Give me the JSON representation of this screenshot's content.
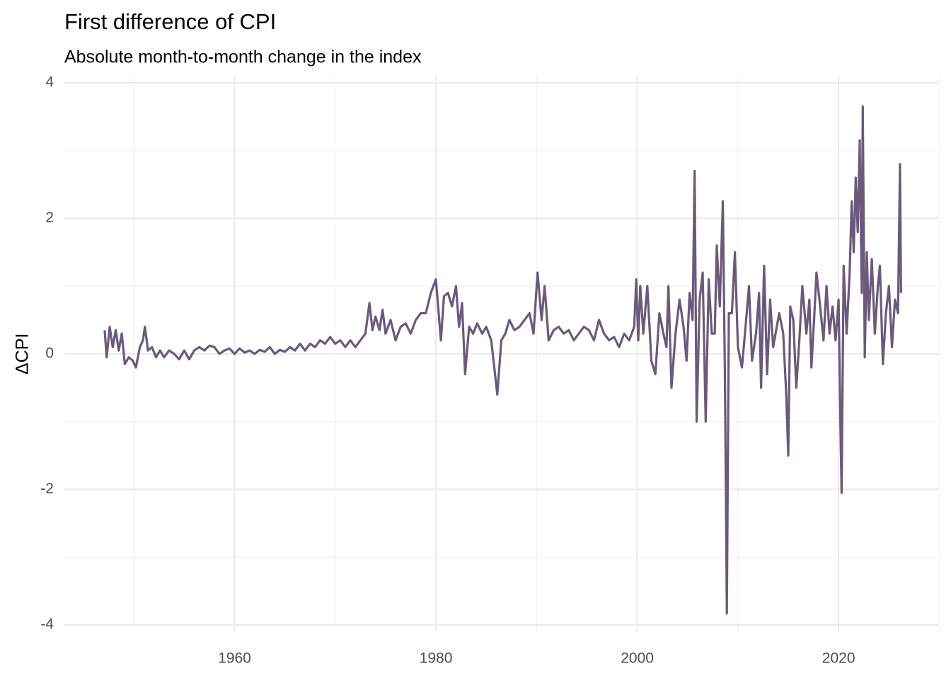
{
  "chart_data": {
    "type": "line",
    "title": "First difference of CPI",
    "subtitle": "Absolute month-to-month change in the index",
    "ylabel": "ΔCPI",
    "color": "#6b5a7b",
    "x": [
      1947.1,
      1947.3,
      1947.6,
      1947.9,
      1948.2,
      1948.5,
      1948.8,
      1949.1,
      1949.5,
      1949.9,
      1950.2,
      1950.6,
      1950.9,
      1951.1,
      1951.4,
      1951.8,
      1952.2,
      1952.6,
      1953.0,
      1953.5,
      1954.0,
      1954.5,
      1955.0,
      1955.5,
      1956.0,
      1956.5,
      1957.0,
      1957.5,
      1958.0,
      1958.5,
      1959.0,
      1959.5,
      1960.0,
      1960.5,
      1961.0,
      1961.5,
      1962.0,
      1962.5,
      1963.0,
      1963.5,
      1964.0,
      1964.5,
      1965.0,
      1965.5,
      1966.0,
      1966.5,
      1967.0,
      1967.5,
      1968.0,
      1968.5,
      1969.0,
      1969.5,
      1970.0,
      1970.5,
      1971.0,
      1971.5,
      1972.0,
      1972.5,
      1973.0,
      1973.4,
      1973.7,
      1974.0,
      1974.4,
      1974.7,
      1975.0,
      1975.5,
      1976.0,
      1976.5,
      1977.0,
      1977.5,
      1978.0,
      1978.5,
      1979.0,
      1979.5,
      1980.0,
      1980.5,
      1980.8,
      1981.2,
      1981.6,
      1982.0,
      1982.3,
      1982.6,
      1982.9,
      1983.3,
      1983.7,
      1984.1,
      1984.6,
      1985.0,
      1985.5,
      1986.1,
      1986.5,
      1986.9,
      1987.3,
      1987.8,
      1988.3,
      1988.8,
      1989.3,
      1989.7,
      1990.1,
      1990.5,
      1990.8,
      1991.2,
      1991.7,
      1992.2,
      1992.7,
      1993.2,
      1993.7,
      1994.2,
      1994.7,
      1995.2,
      1995.7,
      1996.2,
      1996.7,
      1997.2,
      1997.7,
      1998.2,
      1998.7,
      1999.2,
      1999.7,
      1999.9,
      2000.1,
      2000.3,
      2000.6,
      2001.0,
      2001.4,
      2001.8,
      2002.2,
      2002.6,
      2002.9,
      2003.1,
      2003.4,
      2003.8,
      2004.2,
      2004.6,
      2004.9,
      2005.2,
      2005.5,
      2005.7,
      2005.9,
      2006.2,
      2006.5,
      2006.8,
      2007.1,
      2007.4,
      2007.7,
      2007.9,
      2008.2,
      2008.5,
      2008.7,
      2008.8,
      2008.9,
      2009.1,
      2009.4,
      2009.7,
      2010.0,
      2010.4,
      2010.7,
      2011.1,
      2011.4,
      2011.8,
      2012.1,
      2012.3,
      2012.6,
      2012.9,
      2013.2,
      2013.5,
      2013.8,
      2014.1,
      2014.5,
      2014.8,
      2015.0,
      2015.2,
      2015.5,
      2015.8,
      2016.1,
      2016.4,
      2016.8,
      2017.1,
      2017.3,
      2017.6,
      2017.8,
      2018.1,
      2018.5,
      2018.8,
      2019.1,
      2019.4,
      2019.7,
      2020.0,
      2020.2,
      2020.3,
      2020.5,
      2020.8,
      2021.1,
      2021.3,
      2021.5,
      2021.7,
      2021.9,
      2022.1,
      2022.3,
      2022.4,
      2022.6,
      2022.8,
      2023.0,
      2023.3,
      2023.6,
      2023.9,
      2024.1,
      2024.4,
      2024.7,
      2025.0,
      2025.3,
      2025.6,
      2025.9,
      2026.1,
      2026.2
    ],
    "values": [
      0.35,
      -0.05,
      0.4,
      0.1,
      0.35,
      0.05,
      0.3,
      -0.15,
      -0.05,
      -0.1,
      -0.2,
      0.1,
      0.2,
      0.4,
      0.05,
      0.1,
      -0.05,
      0.05,
      -0.05,
      0.05,
      0.0,
      -0.08,
      0.05,
      -0.08,
      0.05,
      0.1,
      0.05,
      0.12,
      0.1,
      0.0,
      0.05,
      0.08,
      0.0,
      0.08,
      0.02,
      0.05,
      0.0,
      0.06,
      0.03,
      0.1,
      0.0,
      0.06,
      0.03,
      0.1,
      0.05,
      0.15,
      0.05,
      0.15,
      0.1,
      0.2,
      0.15,
      0.25,
      0.15,
      0.2,
      0.1,
      0.2,
      0.1,
      0.2,
      0.3,
      0.75,
      0.35,
      0.55,
      0.35,
      0.65,
      0.3,
      0.5,
      0.2,
      0.4,
      0.45,
      0.3,
      0.5,
      0.6,
      0.6,
      0.9,
      1.1,
      0.2,
      0.85,
      0.9,
      0.7,
      1.0,
      0.4,
      0.75,
      -0.3,
      0.4,
      0.3,
      0.45,
      0.3,
      0.4,
      0.2,
      -0.6,
      0.2,
      0.3,
      0.5,
      0.35,
      0.4,
      0.5,
      0.6,
      0.3,
      1.2,
      0.5,
      1.0,
      0.2,
      0.35,
      0.4,
      0.3,
      0.35,
      0.2,
      0.3,
      0.4,
      0.35,
      0.2,
      0.5,
      0.3,
      0.2,
      0.25,
      0.1,
      0.3,
      0.2,
      0.4,
      1.1,
      0.2,
      1.0,
      0.3,
      1.0,
      -0.1,
      -0.3,
      0.6,
      0.3,
      0.1,
      1.0,
      -0.5,
      0.3,
      0.8,
      0.4,
      -0.1,
      0.9,
      0.5,
      2.7,
      -1.0,
      0.8,
      1.2,
      -1.0,
      1.1,
      0.3,
      0.3,
      1.6,
      0.7,
      2.25,
      -0.2,
      -1.9,
      -3.83,
      0.6,
      0.6,
      1.5,
      0.1,
      -0.2,
      0.3,
      1.0,
      -0.1,
      0.3,
      0.9,
      -0.5,
      1.3,
      -0.3,
      0.8,
      0.1,
      0.35,
      0.6,
      0.3,
      -0.6,
      -1.5,
      0.7,
      0.5,
      -0.5,
      0.2,
      1.0,
      0.3,
      0.8,
      -0.2,
      0.6,
      1.2,
      0.8,
      0.2,
      1.0,
      0.3,
      0.7,
      0.2,
      0.8,
      -1.2,
      -2.05,
      1.3,
      0.3,
      1.2,
      2.25,
      1.5,
      2.6,
      1.8,
      3.15,
      0.9,
      3.65,
      -0.05,
      1.5,
      0.5,
      1.4,
      0.3,
      1.0,
      1.3,
      -0.15,
      0.6,
      1.0,
      0.1,
      0.8,
      0.6,
      2.8,
      0.9
    ],
    "xlim": [
      1943.1,
      2029.9
    ],
    "xticks": [
      1960,
      1980,
      2000,
      2020
    ],
    "xminor": [
      1950,
      1970,
      1990,
      2010,
      2030
    ],
    "ylim": [
      -4.1,
      4.1
    ],
    "yticks": [
      -4,
      -2,
      0,
      2,
      4
    ],
    "yminor": [
      -3,
      -1,
      1,
      3
    ],
    "grid": true
  }
}
